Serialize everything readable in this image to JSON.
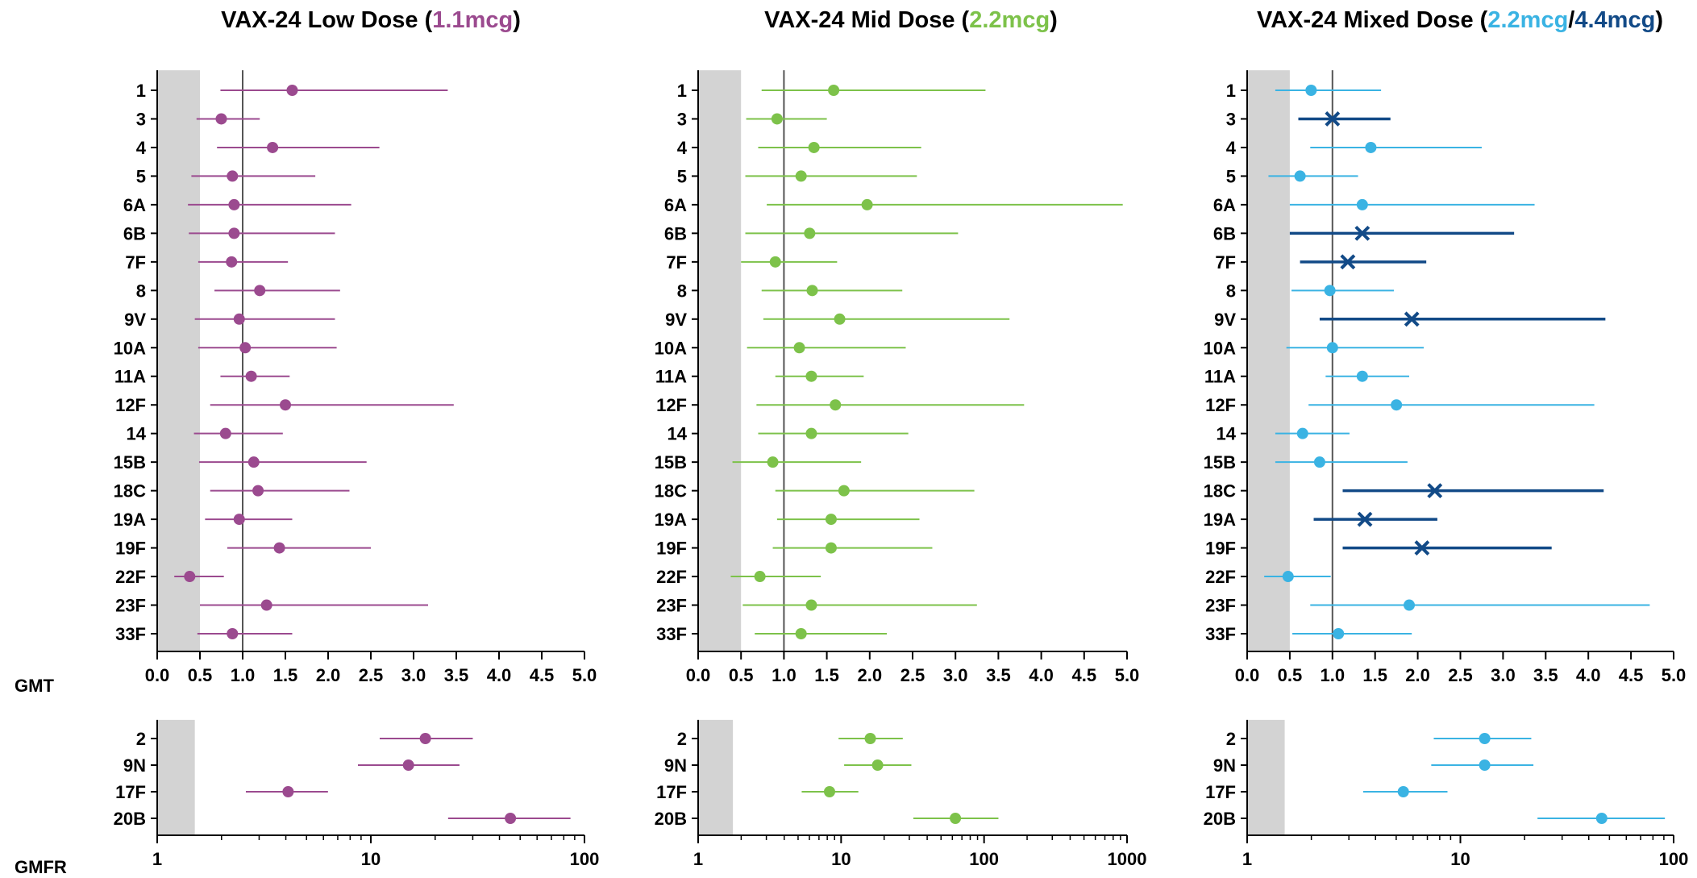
{
  "figure": {
    "row_labels": {
      "gmt": "GMT",
      "gmfr": "GMFR"
    }
  },
  "colors": {
    "purple": "#9b4a8f",
    "green": "#7dc24a",
    "light_blue": "#3ab3e3",
    "dark_blue": "#124a87",
    "shade": "#d3d3d3",
    "axis": "#000000",
    "reference_line": "#555555"
  },
  "chart_data": [
    {
      "type": "forest",
      "panel": "low-gmt",
      "title_parts": [
        {
          "text": "VAX-24 Low Dose (",
          "color": "#000000"
        },
        {
          "text": "1.1mcg",
          "color": "#9b4a8f"
        },
        {
          "text": ")",
          "color": "#000000"
        }
      ],
      "xscale": "linear",
      "xlim": [
        0,
        5
      ],
      "xticks": [
        0,
        0.5,
        1,
        1.5,
        2,
        2.5,
        3,
        3.5,
        4,
        4.5,
        5
      ],
      "xticklabels": [
        "0.0",
        "0.5",
        "1.0",
        "1.5",
        "2.0",
        "2.5",
        "3.0",
        "3.5",
        "4.0",
        "4.5",
        "5.0"
      ],
      "shaded_range": [
        0,
        0.5
      ],
      "reference_line": 1,
      "categories": [
        "1",
        "3",
        "4",
        "5",
        "6A",
        "6B",
        "7F",
        "8",
        "9V",
        "10A",
        "11A",
        "12F",
        "14",
        "15B",
        "18C",
        "19A",
        "19F",
        "22F",
        "23F",
        "33F"
      ],
      "series": [
        {
          "color": "#9b4a8f",
          "marker": "circle",
          "estimate": [
            1.58,
            0.75,
            1.35,
            0.88,
            0.9,
            0.9,
            0.87,
            1.2,
            0.96,
            1.03,
            1.1,
            1.5,
            0.8,
            1.13,
            1.18,
            0.96,
            1.43,
            0.38,
            1.28,
            0.88
          ],
          "lower": [
            0.74,
            0.46,
            0.7,
            0.4,
            0.36,
            0.37,
            0.48,
            0.67,
            0.44,
            0.48,
            0.74,
            0.62,
            0.43,
            0.49,
            0.62,
            0.56,
            0.82,
            0.2,
            0.5,
            0.47
          ],
          "upper": [
            3.4,
            1.2,
            2.6,
            1.85,
            2.27,
            2.08,
            1.53,
            2.14,
            2.08,
            2.1,
            1.55,
            3.47,
            1.47,
            2.45,
            2.25,
            1.58,
            2.5,
            0.78,
            3.17,
            1.58
          ]
        }
      ]
    },
    {
      "type": "forest",
      "panel": "mid-gmt",
      "title_parts": [
        {
          "text": "VAX-24 Mid Dose (",
          "color": "#000000"
        },
        {
          "text": "2.2mcg",
          "color": "#7dc24a"
        },
        {
          "text": ")",
          "color": "#000000"
        }
      ],
      "xscale": "linear",
      "xlim": [
        0,
        5
      ],
      "xticks": [
        0,
        0.5,
        1,
        1.5,
        2,
        2.5,
        3,
        3.5,
        4,
        4.5,
        5
      ],
      "xticklabels": [
        "0.0",
        "0.5",
        "1.0",
        "1.5",
        "2.0",
        "2.5",
        "3.0",
        "3.5",
        "4.0",
        "4.5",
        "5.0"
      ],
      "shaded_range": [
        0,
        0.5
      ],
      "reference_line": 1,
      "categories": [
        "1",
        "3",
        "4",
        "5",
        "6A",
        "6B",
        "7F",
        "8",
        "9V",
        "10A",
        "11A",
        "12F",
        "14",
        "15B",
        "18C",
        "19A",
        "19F",
        "22F",
        "23F",
        "33F"
      ],
      "series": [
        {
          "color": "#7dc24a",
          "marker": "circle",
          "estimate": [
            1.58,
            0.92,
            1.35,
            1.2,
            1.97,
            1.3,
            0.9,
            1.33,
            1.65,
            1.18,
            1.32,
            1.6,
            1.32,
            0.87,
            1.7,
            1.55,
            1.55,
            0.72,
            1.32,
            1.2
          ],
          "lower": [
            0.74,
            0.56,
            0.7,
            0.55,
            0.8,
            0.55,
            0.5,
            0.74,
            0.76,
            0.57,
            0.9,
            0.68,
            0.7,
            0.4,
            0.9,
            0.92,
            0.87,
            0.38,
            0.52,
            0.66
          ],
          "upper": [
            3.35,
            1.5,
            2.6,
            2.55,
            4.95,
            3.03,
            1.62,
            2.38,
            3.63,
            2.42,
            1.93,
            3.8,
            2.45,
            1.9,
            3.22,
            2.58,
            2.73,
            1.43,
            3.25,
            2.2
          ]
        }
      ]
    },
    {
      "type": "forest",
      "panel": "mixed-gmt",
      "title_parts": [
        {
          "text": "VAX-24 Mixed Dose (",
          "color": "#000000"
        },
        {
          "text": "2.2mcg",
          "color": "#3ab3e3"
        },
        {
          "text": "/",
          "color": "#000000"
        },
        {
          "text": "4.4mcg",
          "color": "#124a87"
        },
        {
          "text": ")",
          "color": "#000000"
        }
      ],
      "xscale": "linear",
      "xlim": [
        0,
        5
      ],
      "xticks": [
        0,
        0.5,
        1,
        1.5,
        2,
        2.5,
        3,
        3.5,
        4,
        4.5,
        5
      ],
      "xticklabels": [
        "0.0",
        "0.5",
        "1.0",
        "1.5",
        "2.0",
        "2.5",
        "3.0",
        "3.5",
        "4.0",
        "4.5",
        "5.0"
      ],
      "shaded_range": [
        0,
        0.5
      ],
      "reference_line": 1,
      "categories": [
        "1",
        "3",
        "4",
        "5",
        "6A",
        "6B",
        "7F",
        "8",
        "9V",
        "10A",
        "11A",
        "12F",
        "14",
        "15B",
        "18C",
        "19A",
        "19F",
        "22F",
        "23F",
        "33F"
      ],
      "series": [
        {
          "color": "#3ab3e3",
          "marker": "circle",
          "categories": [
            "1",
            "4",
            "5",
            "6A",
            "8",
            "10A",
            "11A",
            "12F",
            "14",
            "15B",
            "22F",
            "23F",
            "33F"
          ],
          "estimate": [
            0.75,
            1.45,
            0.62,
            1.35,
            0.97,
            1.0,
            1.35,
            1.75,
            0.65,
            0.85,
            0.48,
            1.9,
            1.07
          ],
          "lower": [
            0.33,
            0.74,
            0.25,
            0.5,
            0.52,
            0.46,
            0.92,
            0.72,
            0.33,
            0.33,
            0.2,
            0.74,
            0.53
          ],
          "upper": [
            1.57,
            2.75,
            1.3,
            3.37,
            1.72,
            2.07,
            1.9,
            4.07,
            1.2,
            1.88,
            0.98,
            4.72,
            1.93
          ]
        },
        {
          "color": "#124a87",
          "marker": "x",
          "categories": [
            "3",
            "6B",
            "7F",
            "9V",
            "18C",
            "19A",
            "19F"
          ],
          "estimate": [
            1.0,
            1.35,
            1.18,
            1.93,
            2.2,
            1.38,
            2.05
          ],
          "lower": [
            0.6,
            0.5,
            0.62,
            0.85,
            1.12,
            0.78,
            1.12
          ],
          "upper": [
            1.68,
            3.13,
            2.1,
            4.2,
            4.18,
            2.23,
            3.57
          ]
        }
      ]
    },
    {
      "type": "forest",
      "panel": "low-gmfr",
      "xscale": "log",
      "xlim": [
        1,
        100
      ],
      "xticks": [
        1,
        10,
        100
      ],
      "xticklabels": [
        "1",
        "10",
        "100"
      ],
      "shaded_range": [
        1,
        1.5
      ],
      "categories": [
        "2",
        "9N",
        "17F",
        "20B"
      ],
      "series": [
        {
          "color": "#9b4a8f",
          "marker": "circle",
          "estimate": [
            18,
            15,
            4.1,
            45
          ],
          "lower": [
            11,
            8.7,
            2.6,
            23
          ],
          "upper": [
            30,
            26,
            6.3,
            86
          ]
        }
      ]
    },
    {
      "type": "forest",
      "panel": "mid-gmfr",
      "xscale": "log",
      "xlim": [
        1,
        1000
      ],
      "xticks": [
        1,
        10,
        100,
        1000
      ],
      "xticklabels": [
        "1",
        "10",
        "100",
        "1000"
      ],
      "shaded_range": [
        1,
        1.75
      ],
      "categories": [
        "2",
        "9N",
        "17F",
        "20B"
      ],
      "series": [
        {
          "color": "#7dc24a",
          "marker": "circle",
          "estimate": [
            16,
            18,
            8.3,
            63
          ],
          "lower": [
            9.6,
            10.5,
            5.3,
            32
          ],
          "upper": [
            27,
            31,
            13.2,
            126
          ]
        }
      ]
    },
    {
      "type": "forest",
      "panel": "mixed-gmfr",
      "xscale": "log",
      "xlim": [
        1,
        100
      ],
      "xticks": [
        1,
        10,
        100
      ],
      "xticklabels": [
        "1",
        "10",
        "100"
      ],
      "shaded_range": [
        1,
        1.5
      ],
      "categories": [
        "2",
        "9N",
        "17F",
        "20B"
      ],
      "series": [
        {
          "color": "#3ab3e3",
          "marker": "circle",
          "estimate": [
            13,
            13,
            5.4,
            46
          ],
          "lower": [
            7.5,
            7.3,
            3.5,
            23
          ],
          "upper": [
            21.5,
            22,
            8.7,
            91
          ]
        }
      ]
    }
  ]
}
